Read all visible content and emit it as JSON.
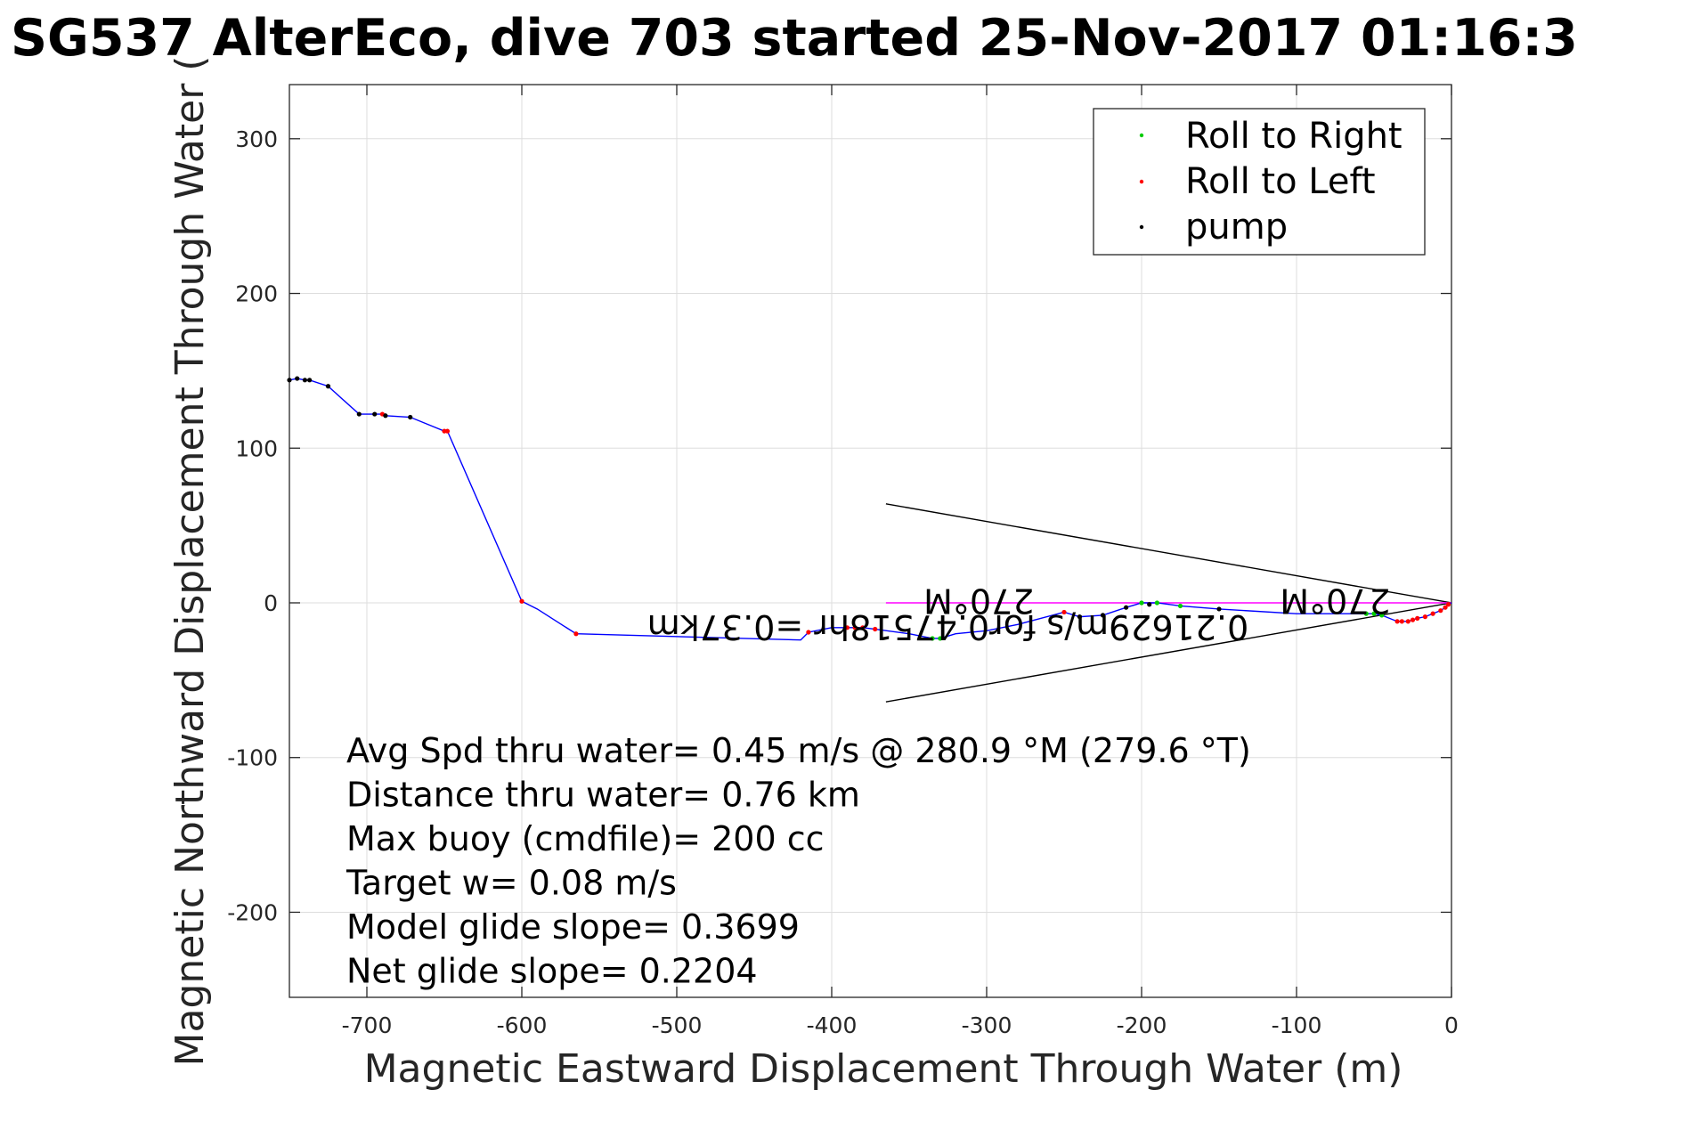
{
  "chart_data": {
    "type": "line",
    "title": "SG537 AlterEco, dive 703 started 25-Nov-2017 01:16:3",
    "xlabel": "Magnetic Eastward Displacement Through Water (m)",
    "ylabel": "Magnetic Northward Displacement Through Water (",
    "xlim": [
      -750,
      0
    ],
    "ylim": [
      -255,
      335
    ],
    "x_ticks": [
      -700,
      -600,
      -500,
      -400,
      -300,
      -200,
      -100,
      0
    ],
    "x_tick_labels": [
      "-700",
      "-600",
      "-500",
      "-400",
      "-300",
      "-200",
      "-100",
      "0"
    ],
    "y_ticks": [
      -200,
      -100,
      0,
      100,
      200,
      300
    ],
    "y_tick_labels": [
      "-200",
      "-100",
      "0",
      "100",
      "200",
      "300"
    ],
    "grid": true,
    "legend_position": "top-right",
    "colors": {
      "track": "#0000ff",
      "roll_right": "#00cc00",
      "roll_left": "#ff0000",
      "pump": "#000000",
      "magenta": "#ff00ff",
      "wedge": "#000000"
    },
    "series": [
      {
        "name": "Roll to Right",
        "x": [
          -335,
          -330,
          -200,
          -190,
          -175,
          -55,
          -50,
          -45
        ],
        "y": [
          -23,
          -23,
          0,
          0,
          -2,
          -7,
          -7,
          -8
        ]
      },
      {
        "name": "Roll to Left",
        "x": [
          -650,
          -648,
          -690,
          -600,
          -565,
          -415,
          -390,
          -385,
          -380,
          -372,
          -250,
          -35,
          -32,
          -28,
          -25,
          -22,
          -17,
          -12,
          -7,
          -4,
          -2
        ],
        "y": [
          111,
          111,
          122,
          1,
          -20,
          -19,
          -16,
          -16,
          -16,
          -17,
          -6,
          -12,
          -12,
          -12,
          -11,
          -10,
          -9,
          -7,
          -5,
          -3,
          -1
        ]
      },
      {
        "name": "pump",
        "x": [
          -750,
          -745,
          -740,
          -737,
          -725,
          -705,
          -695,
          -688,
          -672,
          -240,
          -225,
          -210,
          -195,
          -150
        ],
        "y": [
          144,
          145,
          144,
          144,
          140,
          122,
          122,
          121,
          120,
          -9,
          -8,
          -3,
          -1,
          -4
        ]
      }
    ],
    "track": {
      "x": [
        -750,
        -745,
        -740,
        -737,
        -725,
        -705,
        -695,
        -690,
        -688,
        -672,
        -650,
        -648,
        -600,
        -590,
        -565,
        -420,
        -415,
        -400,
        -390,
        -385,
        -380,
        -372,
        -350,
        -335,
        -330,
        -320,
        -300,
        -280,
        -250,
        -240,
        -225,
        -210,
        -200,
        -190,
        -175,
        -150,
        -100,
        -55,
        -50,
        -45,
        -35,
        -32,
        -28,
        -25,
        -22,
        -17,
        -12,
        -7,
        -4,
        -2,
        0
      ],
      "y": [
        144,
        145,
        144,
        144,
        140,
        122,
        122,
        122,
        121,
        120,
        111,
        111,
        1,
        -4,
        -20,
        -24,
        -19,
        -16,
        -16,
        -16,
        -16,
        -17,
        -20,
        -23,
        -23,
        -20,
        -18,
        -14,
        -6,
        -9,
        -8,
        -3,
        0,
        0,
        -2,
        -4,
        -7,
        -7,
        -7,
        -8,
        -12,
        -12,
        -12,
        -11,
        -10,
        -9,
        -7,
        -5,
        -3,
        -1,
        0
      ]
    },
    "magenta_line": {
      "x": [
        -365,
        0
      ],
      "y": [
        0,
        0
      ]
    },
    "wedge": {
      "x": [
        -365,
        0,
        -365
      ],
      "y": [
        64,
        0,
        -64
      ]
    },
    "rotated_labels": [
      {
        "text": "0.21629m/s for0.47518hr =0.37km",
        "x": -325,
        "y": -8
      },
      {
        "text": "270°M",
        "x": -305,
        "y": 9
      },
      {
        "text": "270°M",
        "x": -75,
        "y": 9
      }
    ],
    "annotations": [
      "Avg Spd thru water=  0.45 m/s @ 280.9 °M (279.6 °T)",
      "Distance thru water=  0.76 km",
      "Max buoy (cmdfile)= 200 cc",
      "Target w= 0.08 m/s",
      "Model glide slope= 0.3699",
      "Net glide slope= 0.2204"
    ]
  }
}
